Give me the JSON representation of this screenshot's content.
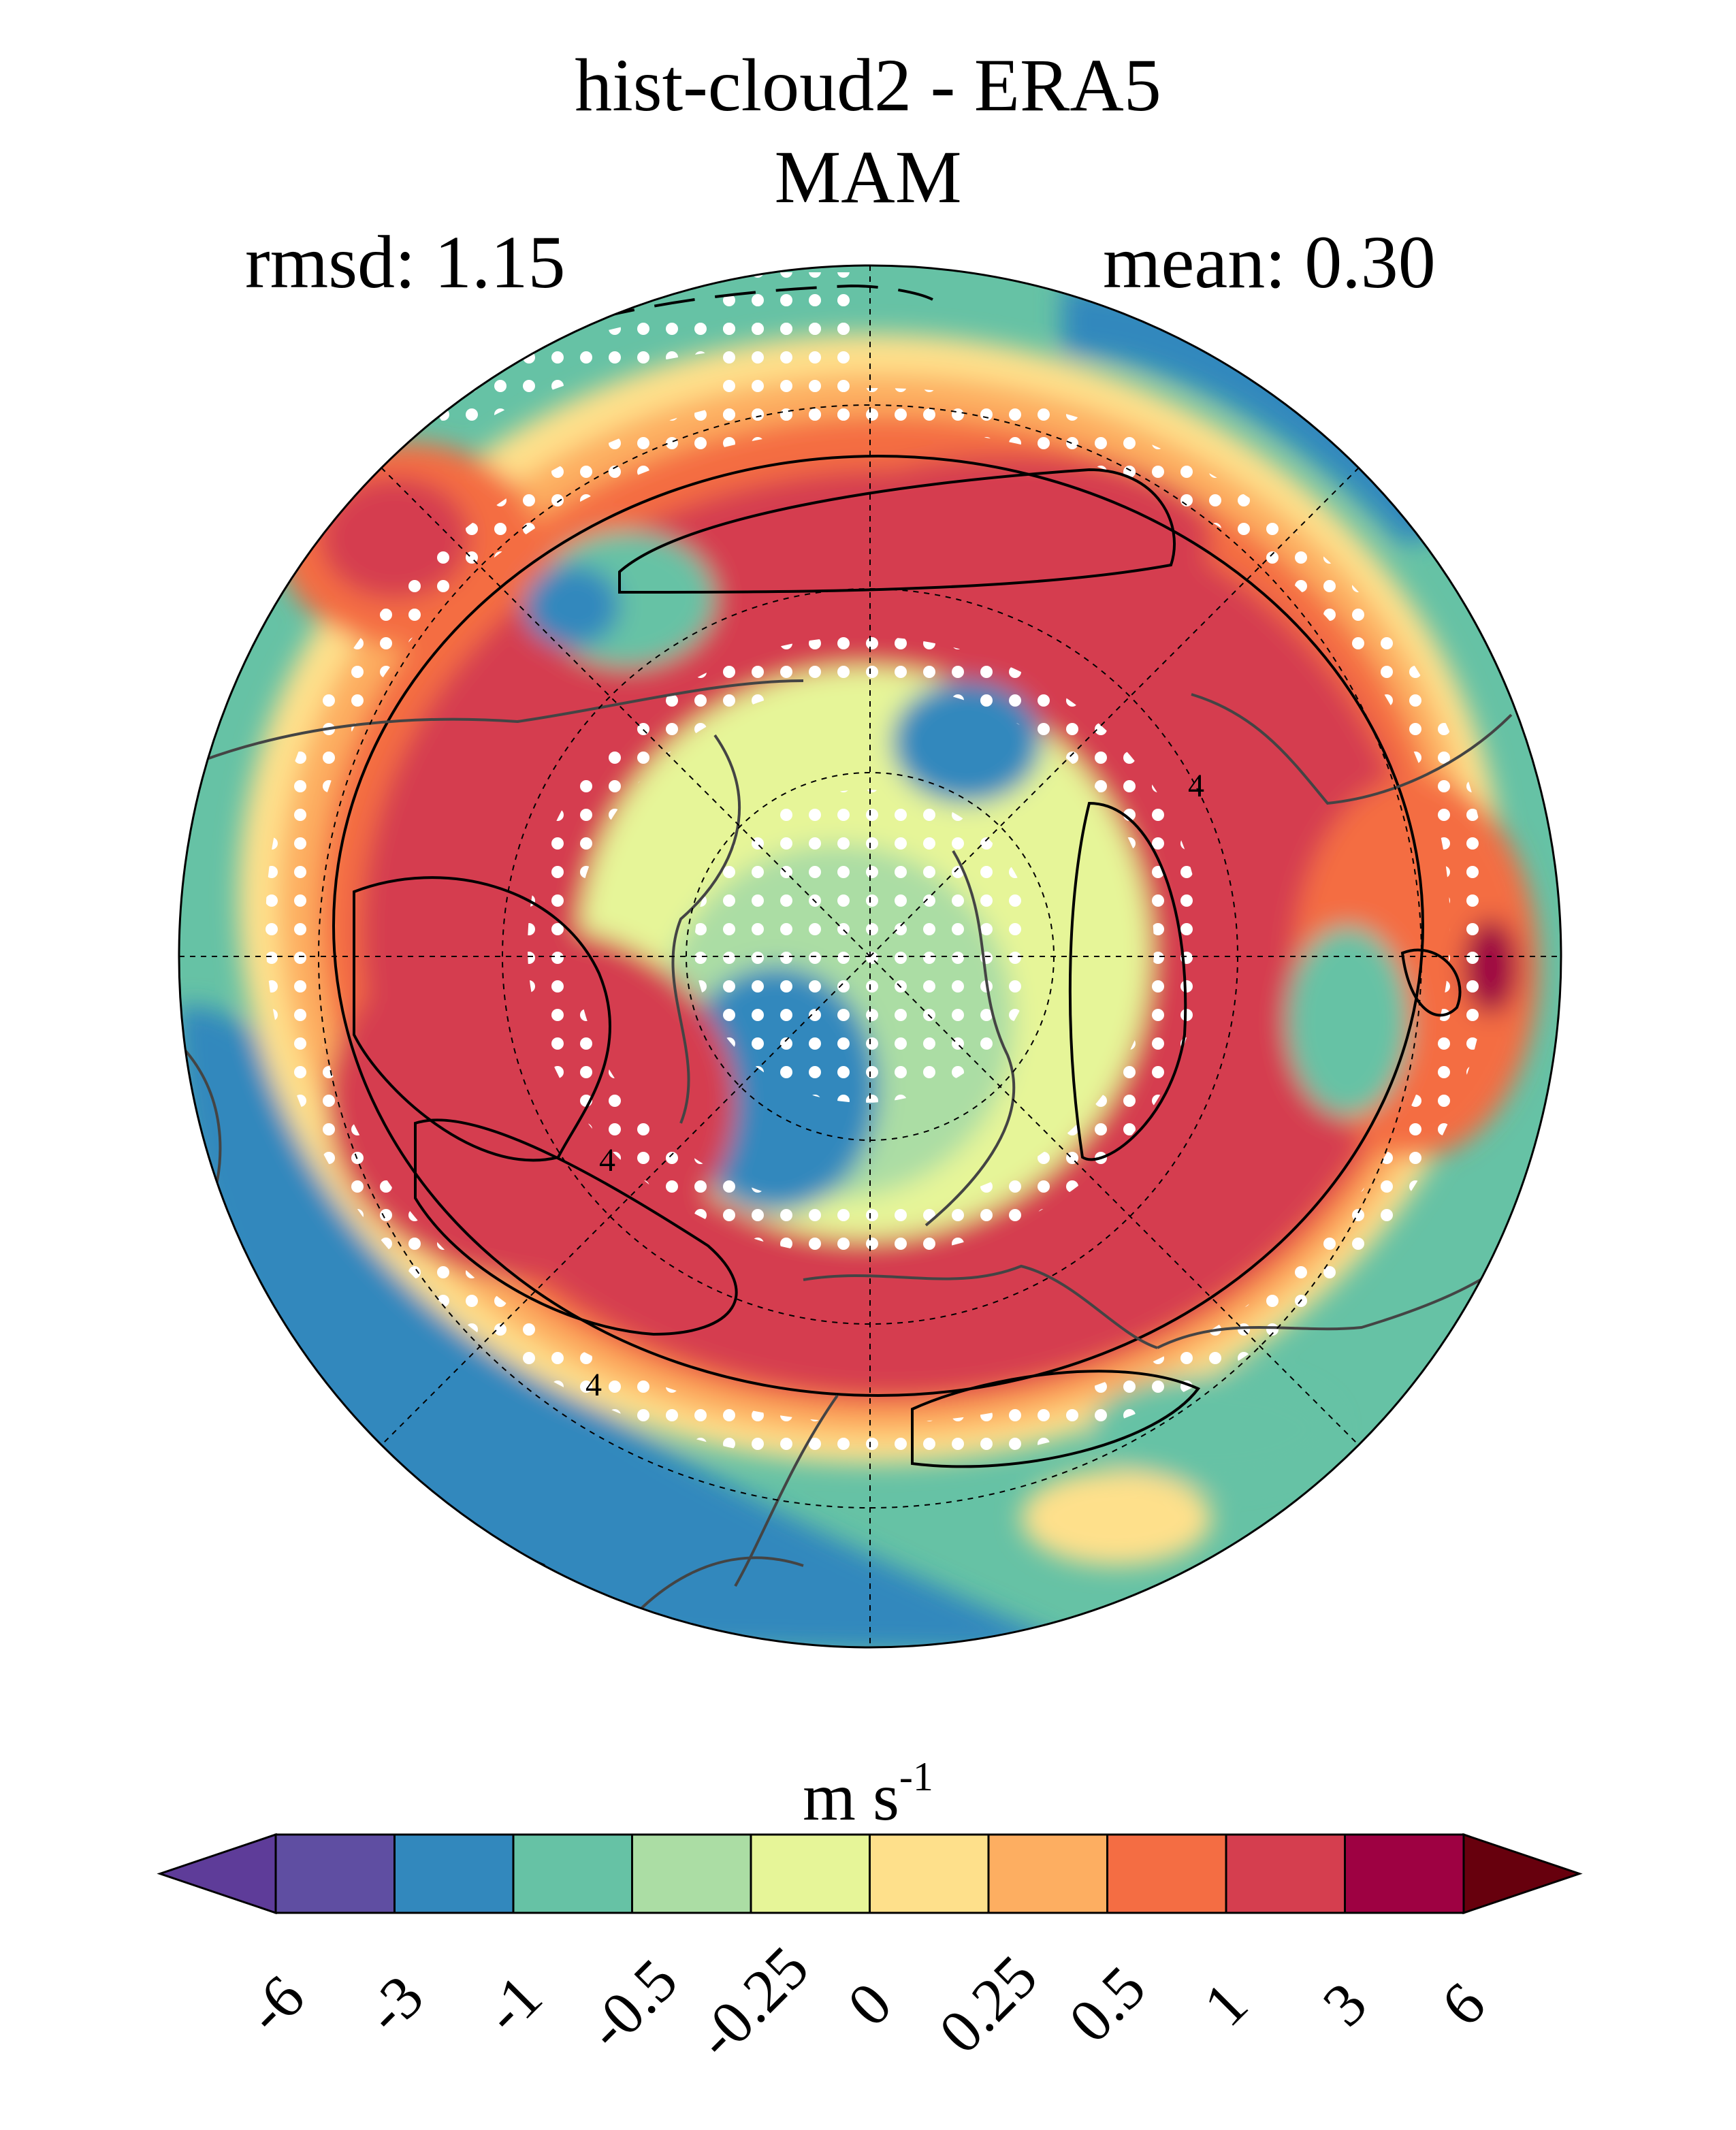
{
  "title_line1": "hist-cloud2 - ERA5",
  "title_line2": "MAM",
  "rmsd_label": "rmsd: 1.15",
  "mean_label": "mean: 0.30",
  "map": {
    "projection": "north-polar-stereographic",
    "variable": "wind speed difference",
    "contour_label": "4",
    "stippling": "white dots (significance)"
  },
  "colorbar": {
    "units_base": "m s",
    "units_exp": "-1",
    "ticks": [
      "-6",
      "-3",
      "-1",
      "-0.5",
      "-0.25",
      "0",
      "0.25",
      "0.5",
      "1",
      "3",
      "6"
    ],
    "colors": [
      "#5e3c99",
      "#5f4ea2",
      "#3288bd",
      "#66c2a5",
      "#abdda4",
      "#e6f598",
      "#fee08b",
      "#fdae61",
      "#f46d43",
      "#d53e4f",
      "#9e0142",
      "#67000d"
    ]
  }
}
